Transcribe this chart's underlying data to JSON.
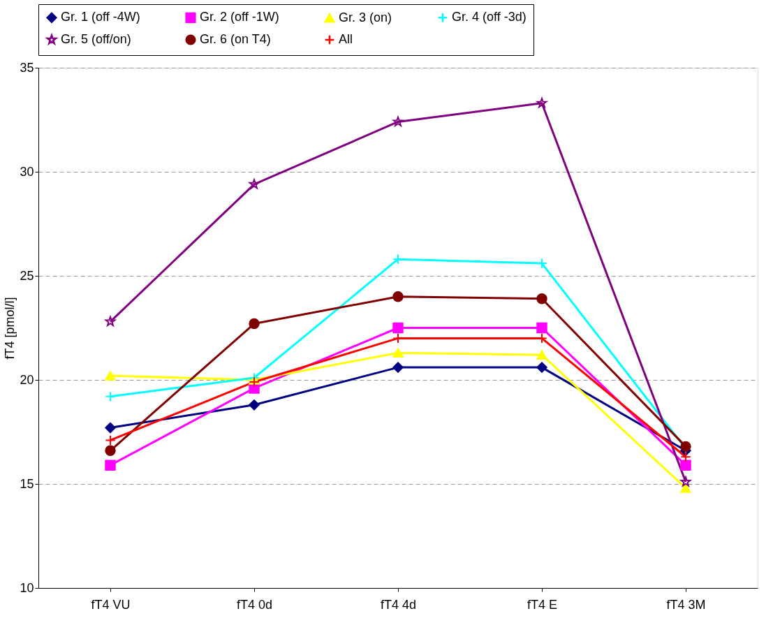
{
  "chart_data": {
    "type": "line",
    "ylabel": "fT4 [pmol/l]",
    "categories": [
      "fT4 VU",
      "fT4 0d",
      "fT4 4d",
      "fT4 E",
      "fT4 3M"
    ],
    "series": [
      {
        "name": "Gr. 1 (off -4W)",
        "color": "#000080",
        "marker": "diamond",
        "values": [
          17.7,
          18.8,
          20.6,
          20.6,
          16.6
        ]
      },
      {
        "name": "Gr. 2 (off -1W)",
        "color": "#ff00ff",
        "marker": "square",
        "values": [
          15.9,
          19.6,
          22.5,
          22.5,
          15.9
        ]
      },
      {
        "name": "Gr. 3 (on)",
        "color": "#ffff00",
        "marker": "triangle",
        "values": [
          20.2,
          20.0,
          21.3,
          21.2,
          14.8
        ]
      },
      {
        "name": "Gr. 4 (off -3d)",
        "color": "#00ffff",
        "marker": "cross",
        "values": [
          19.2,
          20.1,
          25.8,
          25.6,
          16.7
        ]
      },
      {
        "name": "Gr. 5 (off/on)",
        "color": "#800080",
        "marker": "star",
        "values": [
          22.8,
          29.4,
          32.4,
          33.3,
          15.1
        ]
      },
      {
        "name": "Gr. 6 (on T4)",
        "color": "#800000",
        "marker": "circle",
        "values": [
          16.6,
          22.7,
          24.0,
          23.9,
          16.8
        ]
      },
      {
        "name": "All",
        "color": "#ff0000",
        "marker": "cross",
        "values": [
          17.1,
          19.9,
          22.0,
          22.0,
          16.3
        ]
      }
    ],
    "ylim": [
      10,
      35
    ],
    "yticks": [
      10,
      15,
      20,
      25,
      30,
      35
    ],
    "grid": "y",
    "legend": "top",
    "line_style": "solid"
  }
}
